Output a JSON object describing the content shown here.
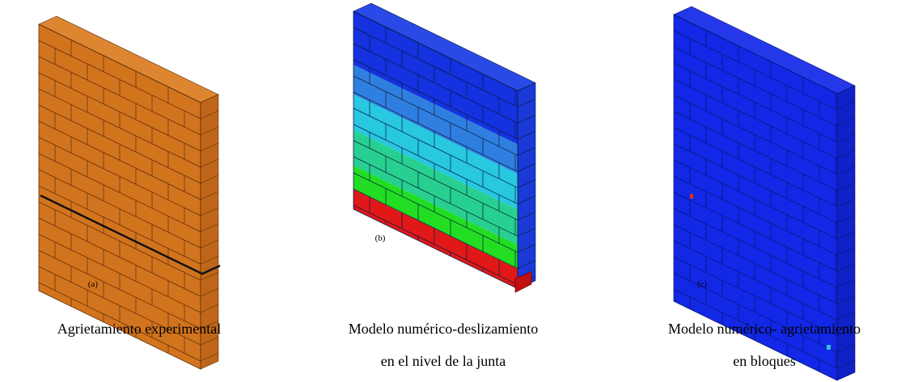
{
  "panels": [
    {
      "label": "(a)",
      "caption": [
        "Agrietamiento experimental"
      ]
    },
    {
      "label": "(b)",
      "caption": [
        "Modelo numérico-deslizamiento",
        "en el nivel de la junta"
      ]
    },
    {
      "label": "(c)",
      "caption": [
        "Modelo numérico- agrietamiento",
        "en bloques"
      ]
    }
  ]
}
